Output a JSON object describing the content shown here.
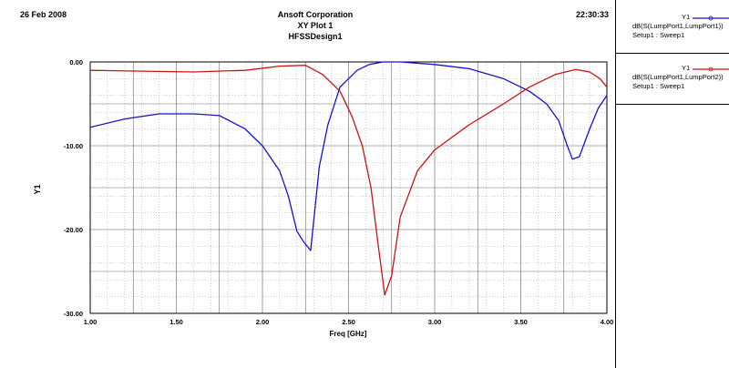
{
  "header": {
    "date": "26 Feb 2008",
    "time": "22:30:33",
    "company": "Ansoft Corporation",
    "plot_name": "XY Plot 1",
    "design": "HFSSDesign1"
  },
  "legend": [
    {
      "tag": "Y1",
      "line1": "dB(S(LumpPort1,LumpPort1))",
      "line2": "Setup1 : Sweep1",
      "color": "#1414c8"
    },
    {
      "tag": "Y1",
      "line1": "dB(S(LumpPort1,LumpPort2))",
      "line2": "Setup1 : Sweep1",
      "color": "#c81414"
    }
  ],
  "chart_data": {
    "type": "line",
    "title": "XY Plot 1",
    "xlabel": "Freq [GHz]",
    "ylabel": "Y1",
    "xlim": [
      1.0,
      4.0
    ],
    "ylim": [
      -30.0,
      0.0
    ],
    "x_ticks": [
      "1.00",
      "1.50",
      "2.00",
      "2.50",
      "3.00",
      "3.50",
      "4.00"
    ],
    "y_ticks": [
      "0.00",
      "-10.00",
      "-20.00",
      "-30.00"
    ],
    "x_tick_values": [
      1.0,
      1.5,
      2.0,
      2.5,
      3.0,
      3.5,
      4.0
    ],
    "y_tick_values": [
      0,
      -10,
      -20,
      -30
    ],
    "grid": true,
    "series": [
      {
        "name": "dB(S(LumpPort1,LumpPort1))",
        "color": "#1414c8",
        "x": [
          1.0,
          1.2,
          1.4,
          1.6,
          1.75,
          1.9,
          2.0,
          2.1,
          2.15,
          2.2,
          2.24,
          2.28,
          2.33,
          2.38,
          2.45,
          2.55,
          2.62,
          2.7,
          2.8,
          3.0,
          3.2,
          3.4,
          3.55,
          3.65,
          3.72,
          3.77,
          3.8,
          3.84,
          3.9,
          3.95,
          4.0
        ],
        "y": [
          -7.8,
          -6.8,
          -6.2,
          -6.2,
          -6.4,
          -8.0,
          -10.0,
          -13.0,
          -16.0,
          -20.2,
          -21.5,
          -22.5,
          -12.5,
          -7.5,
          -3.0,
          -1.0,
          -0.3,
          0.0,
          0.0,
          -0.3,
          -0.8,
          -2.0,
          -3.5,
          -5.0,
          -7.0,
          -10.0,
          -11.6,
          -11.3,
          -8.0,
          -5.5,
          -4.0
        ]
      },
      {
        "name": "dB(S(LumpPort1,LumpPort2))",
        "color": "#c81414",
        "x": [
          1.0,
          1.3,
          1.6,
          1.9,
          2.1,
          2.25,
          2.35,
          2.45,
          2.52,
          2.58,
          2.63,
          2.67,
          2.71,
          2.75,
          2.8,
          2.9,
          3.0,
          3.2,
          3.4,
          3.55,
          3.7,
          3.82,
          3.9,
          3.96,
          4.0
        ],
        "y": [
          -1.0,
          -1.1,
          -1.2,
          -1.0,
          -0.5,
          -0.4,
          -1.5,
          -3.5,
          -6.5,
          -10.0,
          -15.0,
          -21.5,
          -27.8,
          -25.5,
          -18.5,
          -13.0,
          -10.5,
          -7.5,
          -5.0,
          -3.0,
          -1.5,
          -0.9,
          -1.2,
          -2.0,
          -3.0
        ]
      }
    ]
  }
}
